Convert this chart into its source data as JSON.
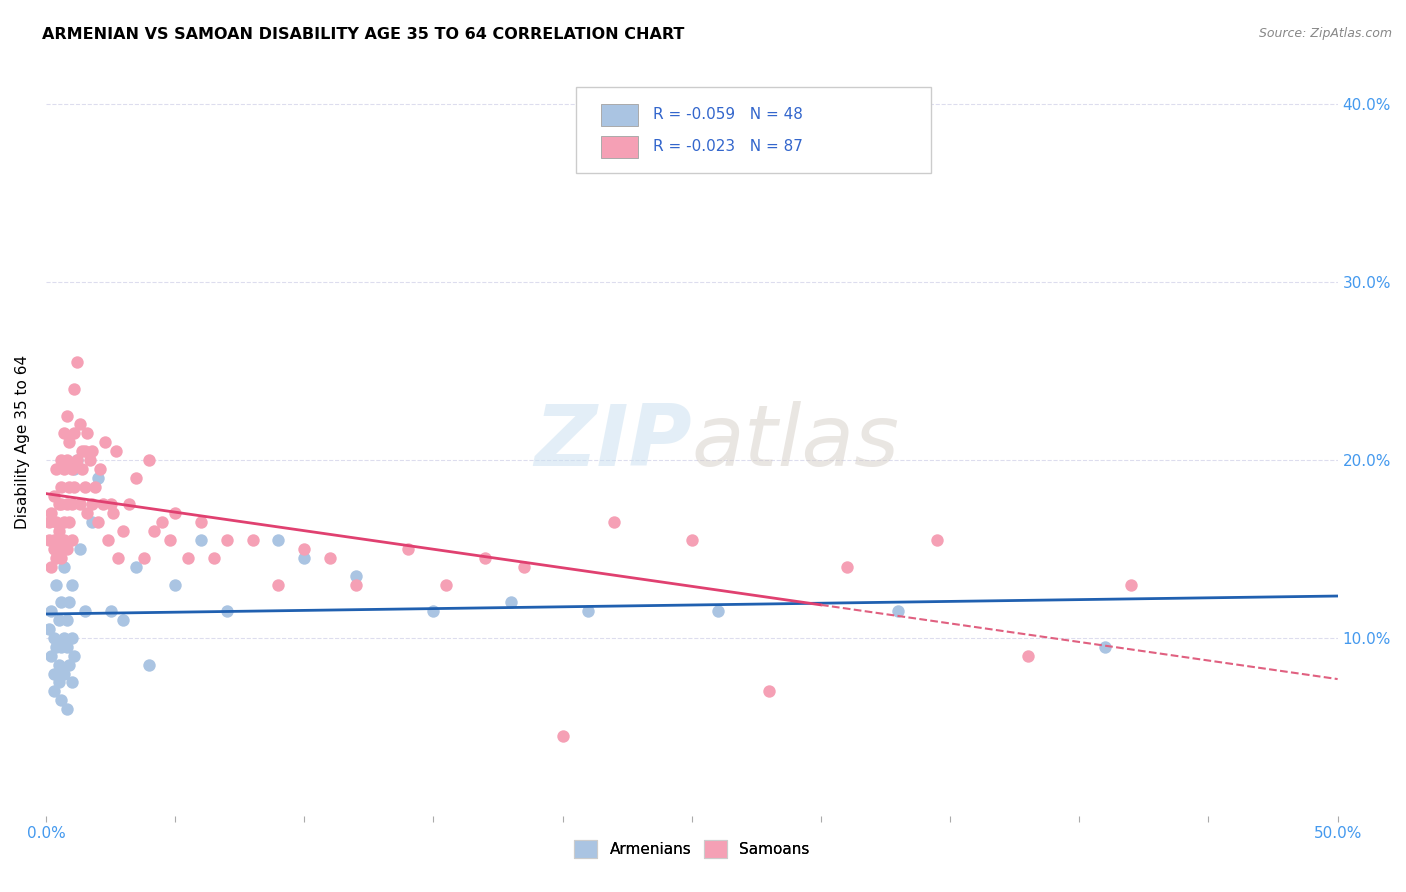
{
  "title": "ARMENIAN VS SAMOAN DISABILITY AGE 35 TO 64 CORRELATION CHART",
  "source": "Source: ZipAtlas.com",
  "ylabel": "Disability Age 35 to 64",
  "xlim": [
    0.0,
    0.5
  ],
  "ylim": [
    0.0,
    0.42
  ],
  "x_ticks": [
    0.0,
    0.05,
    0.1,
    0.15,
    0.2,
    0.25,
    0.3,
    0.35,
    0.4,
    0.45,
    0.5
  ],
  "x_label_only_ends": true,
  "y_ticks": [
    0.1,
    0.2,
    0.3,
    0.4
  ],
  "y_tick_labels": [
    "10.0%",
    "20.0%",
    "30.0%",
    "40.0%"
  ],
  "armenian_R": -0.059,
  "armenian_N": 48,
  "samoan_R": -0.023,
  "samoan_N": 87,
  "armenian_color": "#aac4e2",
  "samoan_color": "#f5a0b5",
  "armenian_line_color": "#2060b0",
  "samoan_line_color": "#e04070",
  "samoan_line_dashed_color": "#e06080",
  "tick_label_color": "#4499ee",
  "legend_text_color": "#3366cc",
  "watermark_color": "#c8dff0",
  "armenian_x": [
    0.001,
    0.002,
    0.002,
    0.003,
    0.003,
    0.003,
    0.004,
    0.004,
    0.005,
    0.005,
    0.005,
    0.006,
    0.006,
    0.006,
    0.007,
    0.007,
    0.007,
    0.008,
    0.008,
    0.008,
    0.009,
    0.009,
    0.01,
    0.01,
    0.01,
    0.011,
    0.011,
    0.012,
    0.013,
    0.015,
    0.018,
    0.02,
    0.025,
    0.03,
    0.035,
    0.04,
    0.05,
    0.06,
    0.07,
    0.09,
    0.1,
    0.12,
    0.15,
    0.18,
    0.21,
    0.26,
    0.33,
    0.41
  ],
  "armenian_y": [
    0.105,
    0.115,
    0.09,
    0.1,
    0.08,
    0.07,
    0.095,
    0.13,
    0.085,
    0.11,
    0.075,
    0.095,
    0.12,
    0.065,
    0.1,
    0.08,
    0.14,
    0.095,
    0.11,
    0.06,
    0.085,
    0.12,
    0.1,
    0.075,
    0.13,
    0.09,
    0.195,
    0.2,
    0.15,
    0.115,
    0.165,
    0.19,
    0.115,
    0.11,
    0.14,
    0.085,
    0.13,
    0.155,
    0.115,
    0.155,
    0.145,
    0.135,
    0.115,
    0.12,
    0.115,
    0.115,
    0.115,
    0.095
  ],
  "samoan_x": [
    0.001,
    0.001,
    0.002,
    0.002,
    0.003,
    0.003,
    0.003,
    0.004,
    0.004,
    0.004,
    0.005,
    0.005,
    0.005,
    0.006,
    0.006,
    0.006,
    0.006,
    0.007,
    0.007,
    0.007,
    0.007,
    0.008,
    0.008,
    0.008,
    0.008,
    0.009,
    0.009,
    0.009,
    0.01,
    0.01,
    0.01,
    0.011,
    0.011,
    0.011,
    0.012,
    0.012,
    0.013,
    0.013,
    0.014,
    0.014,
    0.015,
    0.015,
    0.016,
    0.016,
    0.017,
    0.018,
    0.018,
    0.019,
    0.02,
    0.021,
    0.022,
    0.023,
    0.024,
    0.025,
    0.026,
    0.027,
    0.028,
    0.03,
    0.032,
    0.035,
    0.038,
    0.04,
    0.042,
    0.045,
    0.048,
    0.05,
    0.055,
    0.06,
    0.065,
    0.07,
    0.08,
    0.09,
    0.1,
    0.11,
    0.12,
    0.14,
    0.155,
    0.17,
    0.185,
    0.2,
    0.22,
    0.25,
    0.28,
    0.31,
    0.345,
    0.38,
    0.42
  ],
  "samoan_y": [
    0.165,
    0.155,
    0.14,
    0.17,
    0.155,
    0.15,
    0.18,
    0.145,
    0.165,
    0.195,
    0.15,
    0.175,
    0.16,
    0.2,
    0.145,
    0.185,
    0.175,
    0.165,
    0.195,
    0.215,
    0.155,
    0.175,
    0.2,
    0.15,
    0.225,
    0.165,
    0.185,
    0.21,
    0.155,
    0.195,
    0.175,
    0.215,
    0.24,
    0.185,
    0.255,
    0.2,
    0.175,
    0.22,
    0.205,
    0.195,
    0.205,
    0.185,
    0.215,
    0.17,
    0.2,
    0.175,
    0.205,
    0.185,
    0.165,
    0.195,
    0.175,
    0.21,
    0.155,
    0.175,
    0.17,
    0.205,
    0.145,
    0.16,
    0.175,
    0.19,
    0.145,
    0.2,
    0.16,
    0.165,
    0.155,
    0.17,
    0.145,
    0.165,
    0.145,
    0.155,
    0.155,
    0.13,
    0.15,
    0.145,
    0.13,
    0.15,
    0.13,
    0.145,
    0.14,
    0.045,
    0.165,
    0.155,
    0.07,
    0.14,
    0.155,
    0.09,
    0.13
  ]
}
